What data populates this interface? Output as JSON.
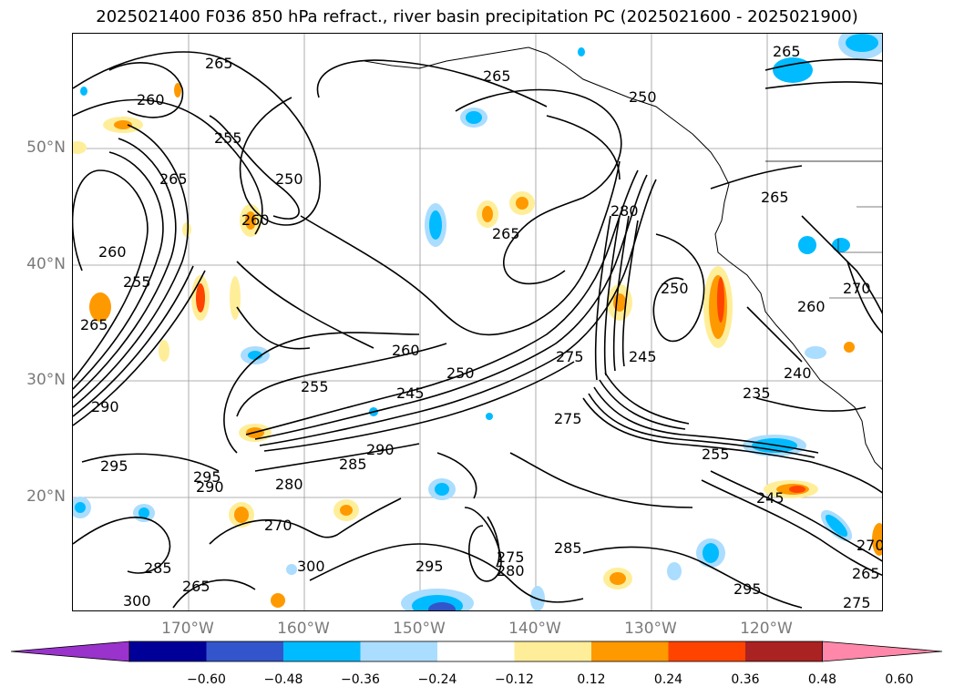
{
  "title": "2025021400 F036 850 hPa refract., river basin precipitation PC (2025021600 - 2025021900)",
  "lat_labels": [
    "50°N",
    "40°N",
    "30°N",
    "20°N"
  ],
  "lon_labels": [
    "170°W",
    "160°W",
    "150°W",
    "140°W",
    "130°W",
    "120°W"
  ],
  "contour_labels": [
    "265",
    "260",
    "265",
    "255",
    "250",
    "265",
    "260",
    "265",
    "255",
    "265",
    "260",
    "250",
    "265",
    "280",
    "275",
    "245",
    "260",
    "255",
    "250",
    "245",
    "240",
    "235",
    "275",
    "265",
    "290",
    "295",
    "295",
    "290",
    "280",
    "285",
    "290",
    "270",
    "300",
    "285",
    "295",
    "265",
    "300",
    "280",
    "275",
    "285",
    "295",
    "275",
    "270",
    "260",
    "255",
    "245",
    "270",
    "265",
    "250"
  ],
  "colorbar": {
    "colors": [
      "#9933cc",
      "#000099",
      "#3355cc",
      "#00bbff",
      "#aaddff",
      "#ffffff",
      "#ffee99",
      "#ff9900",
      "#ff4400",
      "#aa2222",
      "#ff88aa"
    ],
    "ticks": [
      "−0.60",
      "−0.48",
      "−0.36",
      "−0.24",
      "−0.12",
      "0.12",
      "0.24",
      "0.36",
      "0.48",
      "0.60"
    ]
  }
}
